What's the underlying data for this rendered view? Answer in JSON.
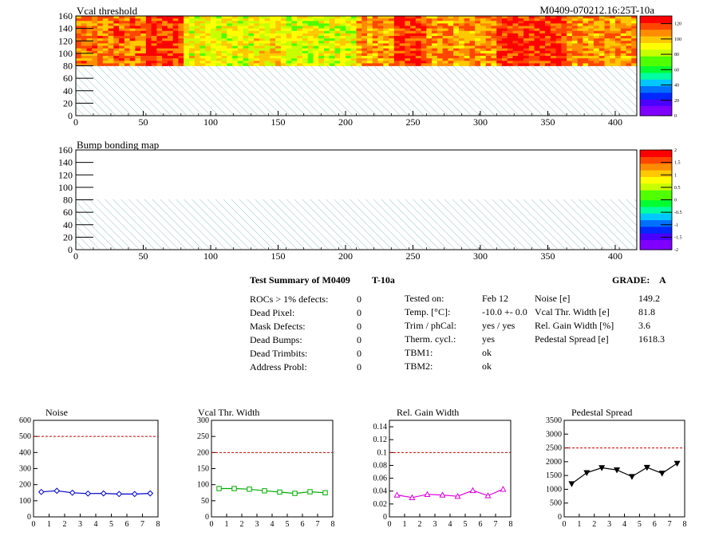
{
  "colors": {
    "palette": [
      "#8000ff",
      "#4b00ff",
      "#0028ff",
      "#0070ff",
      "#00c8ff",
      "#00ffa0",
      "#00ff30",
      "#50ff00",
      "#c8ff00",
      "#ffff00",
      "#ffc800",
      "#ff8c00",
      "#ff4600",
      "#ff0000"
    ],
    "noise": "#0000cc",
    "vcal": "#00aa00",
    "gain": "#dd00dd",
    "pedestal": "#000000",
    "limit_line": "#cc0000",
    "hatch": "#88bbbb"
  },
  "summary": {
    "title": "Test Summary of M0409",
    "temp_tag": "T-10a",
    "grade_label": "GRADE:",
    "grade_value": "A",
    "col1": [
      {
        "label": "ROCs > 1% defects:",
        "value": "0"
      },
      {
        "label": "Dead Pixel:",
        "value": "0"
      },
      {
        "label": "Mask Defects:",
        "value": "0"
      },
      {
        "label": "Dead Bumps:",
        "value": "0"
      },
      {
        "label": "Dead Trimbits:",
        "value": "0"
      },
      {
        "label": "Address Probl:",
        "value": "0"
      }
    ],
    "col2": [
      {
        "label": "Tested on:",
        "value": "Feb 12"
      },
      {
        "label": "Temp. [°C]:",
        "value": "-10.0 +- 0.0"
      },
      {
        "label": "Trim / phCal:",
        "value": "yes / yes"
      },
      {
        "label": "Therm. cycl.:",
        "value": "yes"
      },
      {
        "label": "TBM1:",
        "value": "ok"
      },
      {
        "label": "TBM2:",
        "value": "ok"
      }
    ],
    "col3": [
      {
        "label": "Noise [e]",
        "value": "149.2"
      },
      {
        "label": "Vcal Thr. Width [e]",
        "value": "81.8"
      },
      {
        "label": "Rel. Gain Width [%]",
        "value": "3.6"
      },
      {
        "label": "Pedestal Spread [e]",
        "value": "1618.3"
      }
    ]
  },
  "chart_data": [
    {
      "type": "heatmap",
      "title": "Vcal threshold",
      "top_right_label": "M0409-070212.16:25T-10a",
      "xlim": [
        0,
        416
      ],
      "ylim": [
        0,
        160
      ],
      "x_ticks": [
        "0",
        "50",
        "100",
        "150",
        "200",
        "250",
        "300",
        "350",
        "400"
      ],
      "y_ticks": [
        "0",
        "20",
        "40",
        "60",
        "80",
        "100",
        "120",
        "140",
        "160"
      ],
      "z_range": [
        0,
        130
      ],
      "z_ticks": [
        "0",
        "20",
        "40",
        "60",
        "80",
        "100",
        "120"
      ],
      "filled_rows": [
        80,
        160
      ],
      "empty_rows": [
        0,
        80
      ],
      "roc_mean_values": [
        108,
        110,
        118,
        88,
        86,
        90,
        85,
        85,
        103,
        118,
        105,
        105,
        118,
        120,
        105,
        106
      ],
      "grid": false
    },
    {
      "type": "heatmap",
      "title": "Bump bonding map",
      "xlim": [
        0,
        416
      ],
      "ylim": [
        0,
        160
      ],
      "x_ticks": [
        "0",
        "50",
        "100",
        "150",
        "200",
        "250",
        "300",
        "350",
        "400"
      ],
      "y_ticks": [
        "0",
        "20",
        "40",
        "60",
        "80",
        "100",
        "120",
        "140",
        "160"
      ],
      "z_range": [
        -2,
        2
      ],
      "z_ticks": [
        "-2",
        "-1.5",
        "-1",
        "-0.5",
        "0",
        "0.5",
        "1",
        "1.5",
        "2"
      ],
      "empty_rows": [
        0,
        80
      ],
      "grid": false
    },
    {
      "type": "line",
      "title": "Noise",
      "x": [
        0.5,
        1.5,
        2.5,
        3.5,
        4.5,
        5.5,
        6.5,
        7.5
      ],
      "y": [
        155,
        162,
        150,
        145,
        146,
        142,
        142,
        146
      ],
      "xlim": [
        0,
        8
      ],
      "ylim": [
        0,
        600
      ],
      "limit": 500,
      "x_ticks": [
        "0",
        "1",
        "2",
        "3",
        "4",
        "5",
        "6",
        "7",
        "8"
      ],
      "y_ticks": [
        "0",
        "100",
        "200",
        "300",
        "400",
        "500",
        "600"
      ],
      "marker": "diamond"
    },
    {
      "type": "line",
      "title": "Vcal Thr. Width",
      "x": [
        0.5,
        1.5,
        2.5,
        3.5,
        4.5,
        5.5,
        6.5,
        7.5
      ],
      "y": [
        88,
        88,
        86,
        81,
        77,
        73,
        78,
        75
      ],
      "xlim": [
        0,
        8
      ],
      "ylim": [
        0,
        300
      ],
      "limit": 200,
      "x_ticks": [
        "0",
        "1",
        "2",
        "3",
        "4",
        "5",
        "6",
        "7",
        "8"
      ],
      "y_ticks": [
        "0",
        "50",
        "100",
        "150",
        "200",
        "250",
        "300"
      ],
      "marker": "square"
    },
    {
      "type": "line",
      "title": "Rel. Gain Width",
      "x": [
        0.5,
        1.5,
        2.5,
        3.5,
        4.5,
        5.5,
        6.5,
        7.5
      ],
      "y": [
        0.034,
        0.03,
        0.035,
        0.034,
        0.032,
        0.041,
        0.033,
        0.043
      ],
      "xlim": [
        0,
        8
      ],
      "ylim": [
        0,
        0.15
      ],
      "limit": 0.1,
      "x_ticks": [
        "0",
        "1",
        "2",
        "3",
        "4",
        "5",
        "6",
        "7",
        "8"
      ],
      "y_ticks": [
        "0",
        "0.02",
        "0.04",
        "0.06",
        "0.08",
        "0.1",
        "0.12",
        "0.14"
      ],
      "marker": "triangle"
    },
    {
      "type": "line",
      "title": "Pedestal Spread",
      "x": [
        0.5,
        1.5,
        2.5,
        3.5,
        4.5,
        5.5,
        6.5,
        7.5
      ],
      "y": [
        1200,
        1600,
        1780,
        1700,
        1460,
        1790,
        1580,
        1940
      ],
      "xlim": [
        0,
        8
      ],
      "ylim": [
        0,
        3500
      ],
      "limit": 2500,
      "x_ticks": [
        "0",
        "1",
        "2",
        "3",
        "4",
        "5",
        "6",
        "7",
        "8"
      ],
      "y_ticks": [
        "0",
        "500",
        "1000",
        "1500",
        "2000",
        "2500",
        "3000",
        "3500"
      ],
      "marker": "triangle-down"
    }
  ]
}
